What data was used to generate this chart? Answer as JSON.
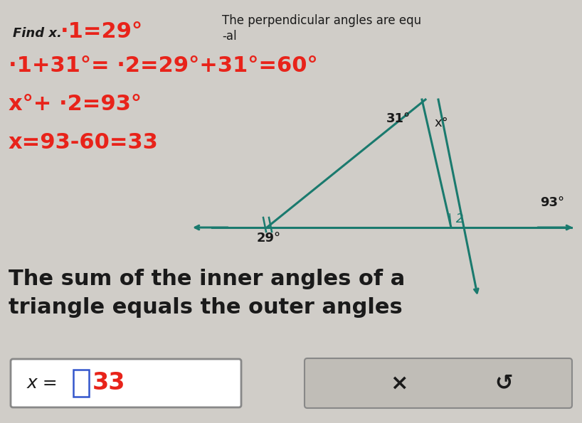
{
  "bg_color": "#d0cdc8",
  "title_text": "Find x.",
  "title_angle": "∙1=29°",
  "note_line1": "The perpendicular angles are equ",
  "note_line2": "-al",
  "eq1": "∙1+31°= ∙2=29°+31°=60°",
  "eq2": "x°+ ∙2=93°",
  "eq3": "x=93-60=33",
  "bottom_text_line1": "The sum of the inner angles of a",
  "bottom_text_line2": "triangle equals the outer angles",
  "answer_label": "x = ",
  "answer_box_value": "33",
  "red_color": "#e8231a",
  "teal_color": "#1a7a6e",
  "dark_text": "#1a1a1a",
  "fig_width": 8.18,
  "fig_height": 5.95
}
